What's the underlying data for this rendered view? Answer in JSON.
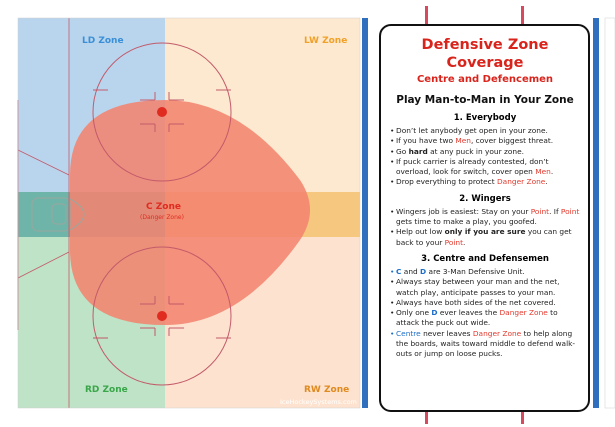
{
  "rink": {
    "zones": {
      "ld": {
        "label": "LD Zone",
        "color": "#3a8fd6"
      },
      "lw": {
        "label": "LW Zone",
        "color": "#f0a12a"
      },
      "c": {
        "label": "C Zone",
        "sub": "(Danger Zone)",
        "color": "#e02b20"
      },
      "rd": {
        "label": "RD Zone",
        "color": "#3aa64a"
      },
      "rw": {
        "label": "RW Zone",
        "color": "#e08a20"
      }
    },
    "watermark": "IceHockeySystems.com",
    "colors": {
      "blue_zone": "#b9d5ee",
      "orange_zone": "#fde9cf",
      "green_zone": "#bfe3c6",
      "peach_zone": "#fde3cf",
      "teal_band": "#6fb4a8",
      "danger": "#f28470",
      "board_line": "#2f6fbd",
      "center_line": "#d8485e"
    }
  },
  "panel": {
    "title": "Defensive Zone Coverage",
    "subtitle": "Centre and Defencemen",
    "heading": "Play Man-to-Man in Your Zone",
    "sections": [
      {
        "title": "1. Everybody",
        "items": [
          [
            "Don’t let anybody get open in your zone."
          ],
          [
            "If you have two ",
            "Men",
            ", cover biggest threat."
          ],
          [
            "Go ",
            "hard",
            " at any puck in your zone."
          ],
          [
            "If puck carrier is already contested, don’t overload, look for switch, cover open ",
            "Men",
            "."
          ],
          [
            "Drop everything to protect ",
            "Danger Zone",
            "."
          ]
        ]
      },
      {
        "title": "2. Wingers",
        "items": [
          [
            "Wingers job is easiest: Stay on your ",
            "Point",
            ". If ",
            "Point",
            " gets time to make a play, you goofed."
          ],
          [
            "Help out low ",
            "only if you are sure",
            " you can get back to your ",
            "Point",
            "."
          ]
        ]
      },
      {
        "title": "3. Centre and Defensemen",
        "items": [
          [
            "C",
            " and ",
            "D",
            " are 3-Man Defensive Unit."
          ],
          [
            "Always stay between your man and the net, watch play, anticipate passes to your man."
          ],
          [
            "Always have both sides of the net covered."
          ],
          [
            "Only one ",
            "D",
            " ever leaves the ",
            "Danger Zone",
            " to attack the puck out wide."
          ],
          [
            "Centre",
            " never leaves ",
            "Danger Zone",
            " to help along the boards, waits toward middle to defend walk-outs or jump on loose pucks."
          ]
        ]
      }
    ]
  }
}
